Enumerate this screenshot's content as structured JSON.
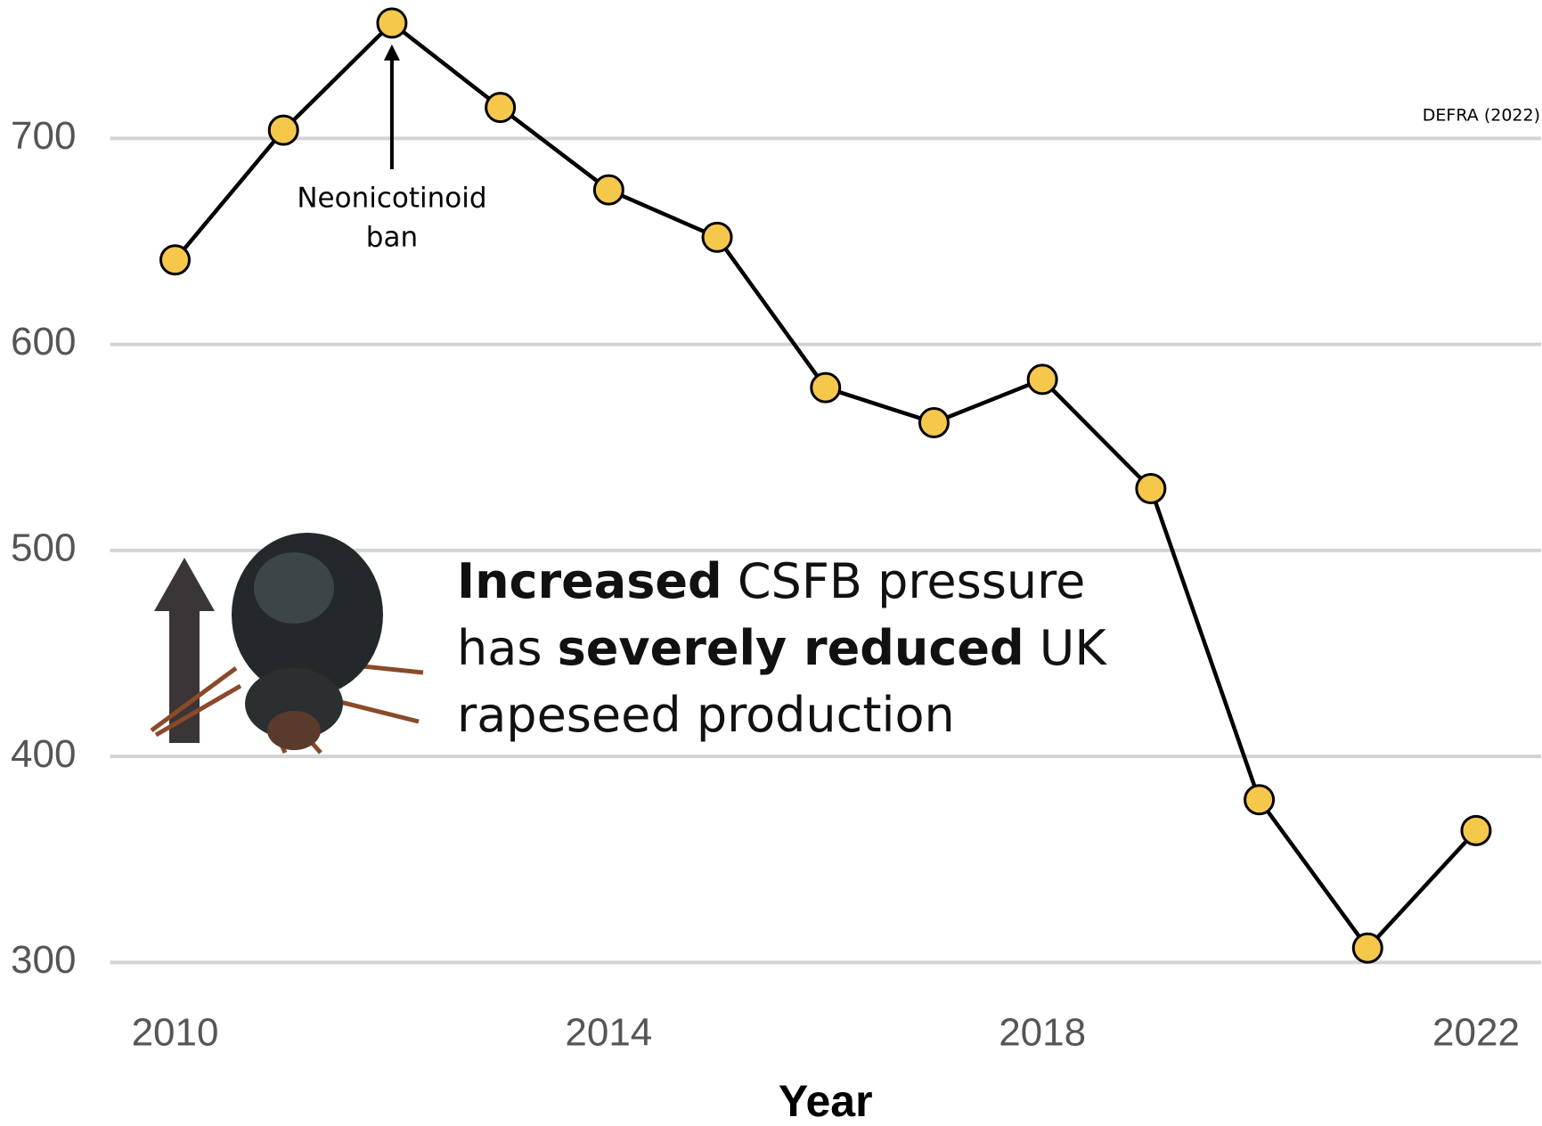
{
  "chart_data": {
    "type": "line",
    "x": [
      2010,
      2011,
      2012,
      2013,
      2014,
      2015,
      2016,
      2017,
      2018,
      2019,
      2020,
      2021,
      2022
    ],
    "series": [
      {
        "color": "#f5c84c",
        "values": [
          641,
          704,
          756,
          715,
          675,
          652,
          579,
          562,
          583,
          530,
          379,
          307,
          364
        ]
      }
    ],
    "xlim": [
      2009.4,
      2022.6
    ],
    "xticks": [
      2010,
      2014,
      2018,
      2022
    ],
    "ylim": [
      295,
      765
    ],
    "yticks": [
      300,
      400,
      500,
      600,
      700
    ],
    "grid": true,
    "xlabel": "Year",
    "source": "DEFRA (2022)",
    "annotation": [
      "Neonicotinoid",
      "ban"
    ],
    "message": [
      [
        {
          "text": "Increased",
          "bold": true
        },
        {
          "text": " CSFB pressure"
        }
      ],
      [
        {
          "text": "has "
        },
        {
          "text": "severely reduced",
          "bold": true
        },
        {
          "text": " UK"
        }
      ],
      [
        {
          "text": "rapeseed production"
        }
      ]
    ]
  }
}
